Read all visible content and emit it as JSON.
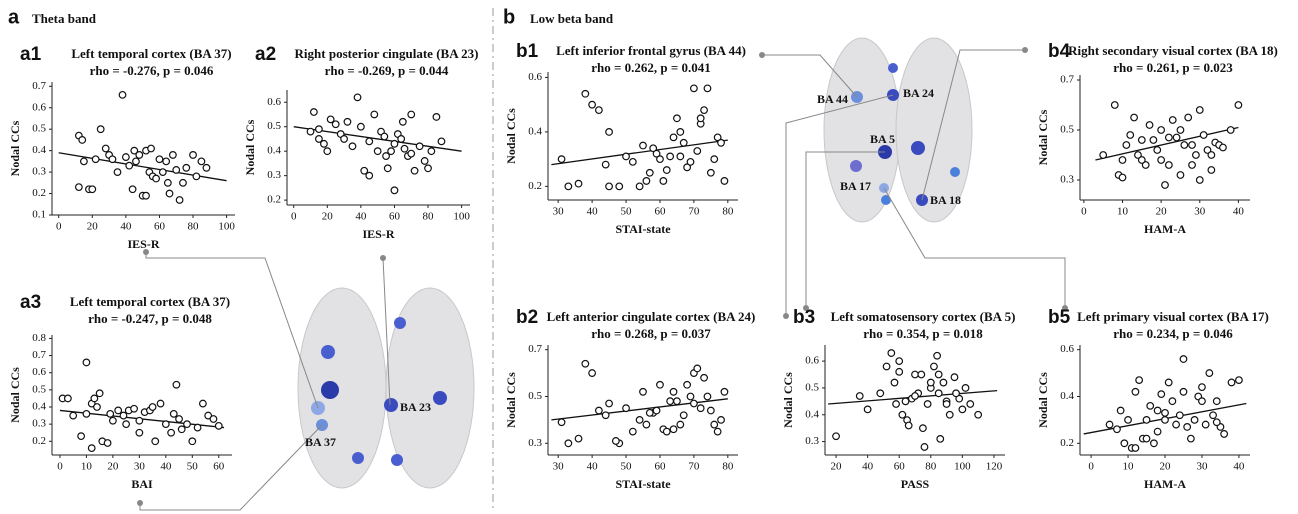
{
  "groups": [
    {
      "letter": "a",
      "title": "Theta band"
    },
    {
      "letter": "b",
      "title": "Low beta band"
    }
  ],
  "brain_labels": {
    "a": [
      "BA 23",
      "BA 37"
    ],
    "b": [
      "BA 44",
      "BA 24",
      "BA 5",
      "BA 17",
      "BA 18"
    ]
  },
  "chart_data": [
    {
      "type": "scatter",
      "panel": "a1",
      "title": "Left temporal cortex (BA 37)",
      "subtitle": "rho = -0.276, p = 0.046",
      "x_label": "IES-R",
      "y_label": "Nodal CCs",
      "x": [
        12,
        14,
        15,
        18,
        22,
        25,
        28,
        30,
        32,
        35,
        38,
        40,
        42,
        44,
        46,
        48,
        50,
        52,
        54,
        55,
        56,
        58,
        60,
        62,
        64,
        65,
        66,
        68,
        70,
        72,
        74,
        76,
        80,
        82,
        85,
        88,
        12,
        20,
        45,
        52
      ],
      "values": [
        0.47,
        0.45,
        0.35,
        0.22,
        0.36,
        0.5,
        0.41,
        0.38,
        0.36,
        0.3,
        0.66,
        0.37,
        0.33,
        0.22,
        0.35,
        0.38,
        0.19,
        0.4,
        0.3,
        0.41,
        0.28,
        0.27,
        0.36,
        0.3,
        0.35,
        0.25,
        0.2,
        0.38,
        0.31,
        0.17,
        0.25,
        0.32,
        0.38,
        0.28,
        0.35,
        0.32,
        0.23,
        0.22,
        0.4,
        0.19
      ],
      "fit": {
        "x": [
          0,
          100
        ],
        "values": [
          0.39,
          0.26
        ]
      },
      "xlim": [
        -4,
        105
      ],
      "ylim": [
        0.1,
        0.72
      ],
      "xticks": [
        0,
        20,
        40,
        60,
        80,
        100
      ],
      "yticks": [
        0.1,
        0.2,
        0.3,
        0.4,
        0.5,
        0.6,
        0.7
      ]
    },
    {
      "type": "scatter",
      "panel": "a2",
      "title": "Right posterior cingulate (BA 23)",
      "subtitle": "rho = -0.269, p = 0.044",
      "x_label": "IES-R",
      "y_label": "Nodal CCs",
      "x": [
        10,
        12,
        15,
        18,
        20,
        22,
        25,
        28,
        30,
        32,
        35,
        38,
        40,
        42,
        45,
        48,
        50,
        52,
        54,
        55,
        56,
        58,
        60,
        62,
        64,
        65,
        66,
        68,
        70,
        72,
        75,
        78,
        80,
        82,
        85,
        88,
        15,
        45,
        60,
        70
      ],
      "values": [
        0.48,
        0.56,
        0.45,
        0.43,
        0.4,
        0.53,
        0.51,
        0.47,
        0.45,
        0.52,
        0.42,
        0.62,
        0.5,
        0.32,
        0.44,
        0.55,
        0.4,
        0.48,
        0.46,
        0.38,
        0.33,
        0.4,
        0.24,
        0.47,
        0.45,
        0.52,
        0.41,
        0.38,
        0.55,
        0.32,
        0.42,
        0.36,
        0.33,
        0.4,
        0.54,
        0.44,
        0.49,
        0.3,
        0.43,
        0.39
      ],
      "fit": {
        "x": [
          0,
          100
        ],
        "values": [
          0.5,
          0.4
        ]
      },
      "xlim": [
        -4,
        105
      ],
      "ylim": [
        0.18,
        0.65
      ],
      "xticks": [
        0,
        20,
        40,
        60,
        80,
        100
      ],
      "yticks": [
        0.2,
        0.3,
        0.4,
        0.5,
        0.6
      ]
    },
    {
      "type": "scatter",
      "panel": "a3",
      "title": "Left temporal cortex (BA 37)",
      "subtitle": "rho = -0.247, p = 0.048",
      "x_label": "BAI",
      "y_label": "Nodal CCs",
      "x": [
        1,
        3,
        5,
        8,
        10,
        10,
        12,
        13,
        14,
        15,
        16,
        18,
        19,
        20,
        22,
        24,
        25,
        26,
        28,
        30,
        30,
        32,
        34,
        35,
        36,
        38,
        40,
        42,
        43,
        44,
        45,
        46,
        48,
        50,
        52,
        54,
        56,
        58,
        60,
        12
      ],
      "values": [
        0.45,
        0.45,
        0.35,
        0.23,
        0.66,
        0.36,
        0.42,
        0.45,
        0.4,
        0.48,
        0.2,
        0.19,
        0.36,
        0.32,
        0.38,
        0.35,
        0.3,
        0.38,
        0.39,
        0.32,
        0.25,
        0.37,
        0.38,
        0.4,
        0.2,
        0.42,
        0.3,
        0.25,
        0.36,
        0.53,
        0.33,
        0.27,
        0.3,
        0.2,
        0.28,
        0.42,
        0.35,
        0.33,
        0.29,
        0.16
      ],
      "fit": {
        "x": [
          0,
          62
        ],
        "values": [
          0.38,
          0.28
        ]
      },
      "xlim": [
        -3,
        65
      ],
      "ylim": [
        0.12,
        0.82
      ],
      "xticks": [
        0,
        10,
        20,
        30,
        40,
        50,
        60
      ],
      "yticks": [
        0.2,
        0.3,
        0.4,
        0.5,
        0.6,
        0.7,
        0.8
      ]
    },
    {
      "type": "scatter",
      "panel": "b1",
      "title": "Left inferior frontal gyrus (BA 44)",
      "subtitle": "rho = 0.262, p = 0.041",
      "x_label": "STAI-state",
      "y_label": "Nodal CCs",
      "x": [
        31,
        33,
        36,
        38,
        40,
        42,
        44,
        45,
        48,
        50,
        52,
        54,
        55,
        56,
        58,
        59,
        60,
        61,
        62,
        63,
        64,
        65,
        66,
        67,
        68,
        69,
        70,
        71,
        72,
        73,
        74,
        75,
        76,
        77,
        78,
        79,
        45,
        57,
        66,
        72
      ],
      "values": [
        0.3,
        0.2,
        0.21,
        0.54,
        0.5,
        0.48,
        0.28,
        0.4,
        0.2,
        0.31,
        0.29,
        0.2,
        0.35,
        0.22,
        0.34,
        0.32,
        0.3,
        0.22,
        0.26,
        0.31,
        0.38,
        0.45,
        0.4,
        0.36,
        0.27,
        0.29,
        0.56,
        0.33,
        0.43,
        0.48,
        0.56,
        0.25,
        0.3,
        0.38,
        0.36,
        0.22,
        0.2,
        0.25,
        0.31,
        0.45
      ],
      "fit": {
        "x": [
          28,
          80
        ],
        "values": [
          0.28,
          0.37
        ]
      },
      "xlim": [
        27,
        83
      ],
      "ylim": [
        0.15,
        0.62
      ],
      "xticks": [
        30,
        40,
        50,
        60,
        70,
        80
      ],
      "yticks": [
        0.2,
        0.4,
        0.6
      ]
    },
    {
      "type": "scatter",
      "panel": "b4",
      "title": "Right secondary visual cortex (BA 18)",
      "subtitle": "rho = 0.261, p = 0.023",
      "x_label": "HAM-A",
      "y_label": "Nodal CCs",
      "x": [
        5,
        8,
        9,
        10,
        11,
        12,
        13,
        14,
        15,
        16,
        17,
        18,
        19,
        20,
        21,
        22,
        23,
        24,
        25,
        26,
        27,
        28,
        29,
        30,
        31,
        32,
        33,
        34,
        35,
        36,
        38,
        40,
        10,
        15,
        20,
        25,
        28,
        30,
        33,
        22
      ],
      "values": [
        0.4,
        0.6,
        0.32,
        0.38,
        0.44,
        0.48,
        0.55,
        0.4,
        0.46,
        0.36,
        0.52,
        0.46,
        0.42,
        0.38,
        0.28,
        0.47,
        0.54,
        0.47,
        0.5,
        0.44,
        0.55,
        0.36,
        0.4,
        0.3,
        0.48,
        0.42,
        0.34,
        0.45,
        0.44,
        0.43,
        0.5,
        0.6,
        0.31,
        0.38,
        0.5,
        0.32,
        0.44,
        0.58,
        0.4,
        0.36
      ],
      "fit": {
        "x": [
          3,
          40
        ],
        "values": [
          0.38,
          0.51
        ]
      },
      "xlim": [
        -1,
        43
      ],
      "ylim": [
        0.22,
        0.72
      ],
      "xticks": [
        0,
        10,
        20,
        30,
        40
      ],
      "yticks": [
        0.3,
        0.5,
        0.7
      ]
    },
    {
      "type": "scatter",
      "panel": "b2",
      "title": "Left anterior cingulate cortex (BA 24)",
      "subtitle": "rho = 0.268, p = 0.037",
      "x_label": "STAI-state",
      "y_label": "Nodal CCs",
      "x": [
        31,
        33,
        36,
        38,
        40,
        42,
        44,
        45,
        48,
        50,
        52,
        54,
        55,
        56,
        58,
        59,
        60,
        61,
        62,
        63,
        64,
        65,
        66,
        67,
        68,
        69,
        70,
        71,
        72,
        73,
        74,
        75,
        76,
        77,
        78,
        79,
        47,
        57,
        64,
        70
      ],
      "values": [
        0.39,
        0.3,
        0.32,
        0.64,
        0.6,
        0.44,
        0.42,
        0.47,
        0.3,
        0.45,
        0.35,
        0.4,
        0.52,
        0.38,
        0.43,
        0.44,
        0.55,
        0.36,
        0.35,
        0.48,
        0.52,
        0.48,
        0.38,
        0.42,
        0.55,
        0.5,
        0.6,
        0.62,
        0.45,
        0.58,
        0.5,
        0.44,
        0.38,
        0.35,
        0.4,
        0.52,
        0.31,
        0.43,
        0.36,
        0.47
      ],
      "fit": {
        "x": [
          28,
          80
        ],
        "values": [
          0.4,
          0.49
        ]
      },
      "xlim": [
        27,
        83
      ],
      "ylim": [
        0.25,
        0.72
      ],
      "xticks": [
        30,
        40,
        50,
        60,
        70,
        80
      ],
      "yticks": [
        0.3,
        0.5,
        0.7
      ]
    },
    {
      "type": "scatter",
      "panel": "b3",
      "title": "Left somatosensory cortex (BA 5)",
      "subtitle": "rho = 0.354, p = 0.018",
      "x_label": "PASS",
      "y_label": "Nodal CCs",
      "x": [
        20,
        35,
        40,
        48,
        52,
        55,
        57,
        58,
        60,
        62,
        65,
        68,
        70,
        72,
        74,
        75,
        78,
        80,
        82,
        84,
        85,
        86,
        88,
        90,
        92,
        95,
        98,
        100,
        102,
        105,
        110,
        60,
        66,
        70,
        80,
        85,
        90,
        76,
        64,
        96
      ],
      "values": [
        0.32,
        0.47,
        0.42,
        0.48,
        0.58,
        0.63,
        0.52,
        0.44,
        0.6,
        0.4,
        0.38,
        0.46,
        0.55,
        0.48,
        0.55,
        0.35,
        0.44,
        0.5,
        0.58,
        0.62,
        0.48,
        0.31,
        0.52,
        0.45,
        0.4,
        0.54,
        0.46,
        0.42,
        0.5,
        0.44,
        0.4,
        0.56,
        0.36,
        0.47,
        0.52,
        0.55,
        0.44,
        0.28,
        0.45,
        0.48
      ],
      "fit": {
        "x": [
          15,
          122
        ],
        "values": [
          0.44,
          0.49
        ]
      },
      "xlim": [
        13,
        127
      ],
      "ylim": [
        0.25,
        0.66
      ],
      "xticks": [
        20,
        40,
        60,
        80,
        100,
        120
      ],
      "yticks": [
        0.3,
        0.4,
        0.5,
        0.6
      ]
    },
    {
      "type": "scatter",
      "panel": "b5",
      "title": "Left primary visual cortex (BA 17)",
      "subtitle": "rho = 0.234, p = 0.046",
      "x_label": "HAM-A",
      "y_label": "Nodal CCs",
      "x": [
        5,
        7,
        8,
        9,
        10,
        11,
        12,
        13,
        14,
        15,
        16,
        17,
        18,
        19,
        20,
        21,
        22,
        23,
        24,
        25,
        26,
        27,
        28,
        29,
        30,
        31,
        32,
        33,
        34,
        35,
        36,
        38,
        40,
        12,
        15,
        20,
        25,
        30,
        34,
        18
      ],
      "values": [
        0.28,
        0.26,
        0.34,
        0.2,
        0.3,
        0.18,
        0.42,
        0.47,
        0.22,
        0.3,
        0.36,
        0.2,
        0.25,
        0.41,
        0.3,
        0.46,
        0.38,
        0.28,
        0.32,
        0.56,
        0.27,
        0.22,
        0.3,
        0.4,
        0.44,
        0.28,
        0.5,
        0.32,
        0.38,
        0.27,
        0.24,
        0.46,
        0.47,
        0.18,
        0.22,
        0.33,
        0.42,
        0.38,
        0.29,
        0.34
      ],
      "fit": {
        "x": [
          -2,
          42
        ],
        "values": [
          0.24,
          0.37
        ]
      },
      "xlim": [
        -3,
        43
      ],
      "ylim": [
        0.15,
        0.62
      ],
      "xticks": [
        0,
        10,
        20,
        30,
        40
      ],
      "yticks": [
        0.2,
        0.4,
        0.6
      ]
    }
  ]
}
